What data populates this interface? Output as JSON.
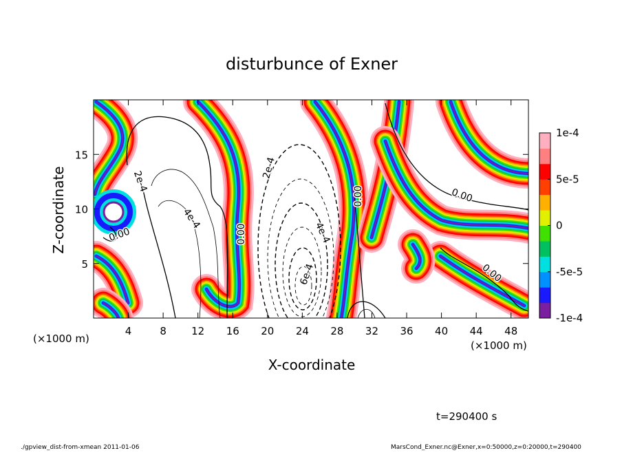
{
  "chart_data": {
    "type": "contour",
    "title": "disturbunce of Exner",
    "xlabel": "X-coordinate",
    "ylabel": "Z-coordinate",
    "axis_unit": "(×1000 m)",
    "xlim": [
      0,
      50
    ],
    "xticks": [
      4,
      8,
      12,
      16,
      20,
      24,
      28,
      32,
      36,
      40,
      44,
      48
    ],
    "ylim": [
      0,
      20
    ],
    "yticks": [
      5,
      10,
      15
    ],
    "colorbar": {
      "lim": [
        -0.0001,
        0.0001
      ],
      "ticks": [
        {
          "value": 0.0001,
          "label": "1e-4"
        },
        {
          "value": 5e-05,
          "label": "5e-5"
        },
        0,
        {
          "value": -5e-05,
          "label": "-5e-5"
        },
        {
          "value": -0.0001,
          "label": "-1e-4"
        }
      ],
      "colormap": [
        "#7a1fa0",
        "#1a1aff",
        "#0090ff",
        "#00e0e0",
        "#00c060",
        "#40e000",
        "#e0f000",
        "#ffb000",
        "#ff4000",
        "#ff0000",
        "#ff8080",
        "#ffb0c0"
      ]
    },
    "contour_labels": [
      "2e-4",
      "4e-4",
      "0.00",
      "0.00",
      "2e-4",
      "4e-4",
      "6e-4",
      "0.00",
      "0.00",
      "0.00"
    ],
    "time_label": "t=290400 s",
    "footer_left": "./gpview_dist-from-xmean  2011-01-06",
    "footer_right": "MarsCond_Exner.nc@Exner,x=0:50000,z=0:20000,t=290400"
  }
}
